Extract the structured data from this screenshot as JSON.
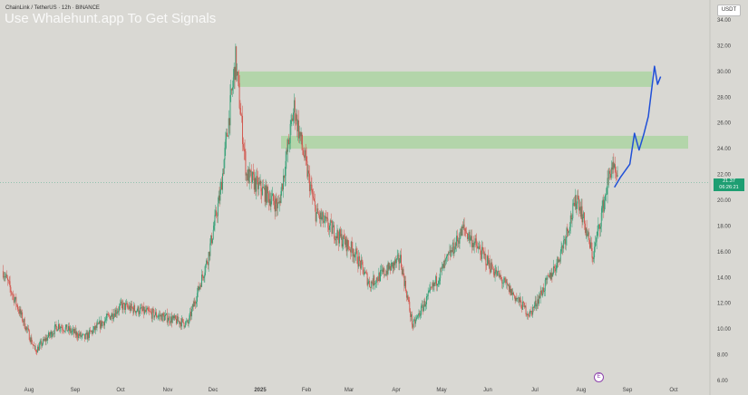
{
  "header": {
    "symbol_line": "ChainLink / TetherUS · 12h · BINANCE",
    "watermark": "Use Whalehunt.app To Get Signals",
    "currency_button": "USDT"
  },
  "event_marker": "E",
  "colors": {
    "up": "#2e9e73",
    "down": "#d2534a",
    "zone": "#a9d4a0",
    "projection": "#2050d8",
    "price_line": "#1e9e72"
  },
  "chart_data": {
    "type": "candlestick",
    "title": "",
    "xlabel": "",
    "ylabel": "",
    "ylim": [
      6,
      34
    ],
    "yticks": [
      6,
      8,
      10,
      12,
      14,
      16,
      18,
      20,
      22,
      24,
      26,
      28,
      30,
      32,
      34
    ],
    "ytick_labels": [
      "6.00",
      "8.00",
      "10.00",
      "12.00",
      "14.00",
      "16.00",
      "18.00",
      "20.00",
      "22.00",
      "24.00",
      "26.00",
      "28.00",
      "30.00",
      "32.00",
      "34.00"
    ],
    "xticks": [
      "Aug",
      "Sep",
      "Oct",
      "Nov",
      "Dec",
      "2025",
      "Feb",
      "Mar",
      "Apr",
      "May",
      "Jun",
      "Jul",
      "Aug",
      "Sep",
      "Oct"
    ],
    "xtick_bold": "2025",
    "current_price": {
      "value": 21.37,
      "label": "21.37",
      "countdown": "06:26:21"
    },
    "resistance_zones": [
      {
        "low": 28.8,
        "high": 30.0
      },
      {
        "low": 24.0,
        "high": 25.0
      }
    ],
    "price_path": [
      {
        "date": "2024-07-15",
        "price": 14.5
      },
      {
        "date": "2024-08-05",
        "price": 8.3
      },
      {
        "date": "2024-08-20",
        "price": 10.3
      },
      {
        "date": "2024-09-06",
        "price": 9.3
      },
      {
        "date": "2024-09-30",
        "price": 11.8
      },
      {
        "date": "2024-10-25",
        "price": 11.0
      },
      {
        "date": "2024-11-12",
        "price": 10.4
      },
      {
        "date": "2024-11-25",
        "price": 15.5
      },
      {
        "date": "2024-12-03",
        "price": 20.5
      },
      {
        "date": "2024-12-13",
        "price": 30.9
      },
      {
        "date": "2024-12-20",
        "price": 22.0
      },
      {
        "date": "2025-01-10",
        "price": 19.5
      },
      {
        "date": "2025-01-20",
        "price": 27.2
      },
      {
        "date": "2025-02-03",
        "price": 19.0
      },
      {
        "date": "2025-02-28",
        "price": 16.0
      },
      {
        "date": "2025-03-10",
        "price": 13.5
      },
      {
        "date": "2025-03-30",
        "price": 15.4
      },
      {
        "date": "2025-04-07",
        "price": 10.2
      },
      {
        "date": "2025-05-10",
        "price": 17.8
      },
      {
        "date": "2025-05-30",
        "price": 14.5
      },
      {
        "date": "2025-06-22",
        "price": 11.1
      },
      {
        "date": "2025-07-10",
        "price": 15.2
      },
      {
        "date": "2025-07-23",
        "price": 20.3
      },
      {
        "date": "2025-08-02",
        "price": 15.6
      },
      {
        "date": "2025-08-14",
        "price": 22.7
      },
      {
        "date": "2025-08-18",
        "price": 21.37
      }
    ],
    "projection": [
      {
        "date": "2025-08-16",
        "price": 21.0
      },
      {
        "date": "2025-08-20",
        "price": 21.8
      },
      {
        "date": "2025-08-26",
        "price": 22.8
      },
      {
        "date": "2025-08-29",
        "price": 25.2
      },
      {
        "date": "2025-09-01",
        "price": 23.9
      },
      {
        "date": "2025-09-04",
        "price": 25.1
      },
      {
        "date": "2025-09-07",
        "price": 26.5
      },
      {
        "date": "2025-09-11",
        "price": 30.4
      },
      {
        "date": "2025-09-13",
        "price": 29.0
      },
      {
        "date": "2025-09-15",
        "price": 29.6
      }
    ]
  }
}
